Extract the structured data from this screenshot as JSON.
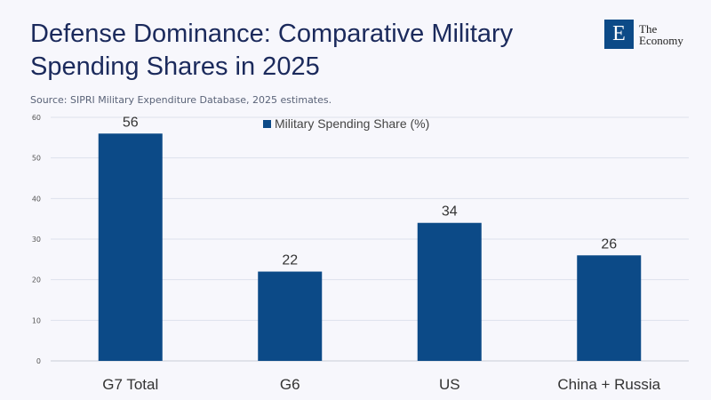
{
  "header": {
    "title": "Defense Dominance: Comparative Military Spending Shares in 2025",
    "source": "Source: SIPRI Military Expenditure Database, 2025 estimates.",
    "logo_letter": "E",
    "logo_text_line1": "The",
    "logo_text_line2": "Economy"
  },
  "colors": {
    "bar": "#0c4a87",
    "title": "#1b2a5c",
    "grid": "#dde2ec"
  },
  "chart_data": {
    "type": "bar",
    "title": "",
    "xlabel": "",
    "ylabel": "",
    "categories": [
      "G7 Total",
      "G6",
      "US",
      "China + Russia"
    ],
    "series": [
      {
        "name": "Military Spending Share (%)",
        "values": [
          56,
          22,
          34,
          26
        ]
      }
    ],
    "ylim": [
      0,
      60
    ],
    "yticks": [
      0,
      10,
      20,
      30,
      40,
      50,
      60
    ],
    "grid": true,
    "legend": "top-center",
    "data_labels": true
  }
}
